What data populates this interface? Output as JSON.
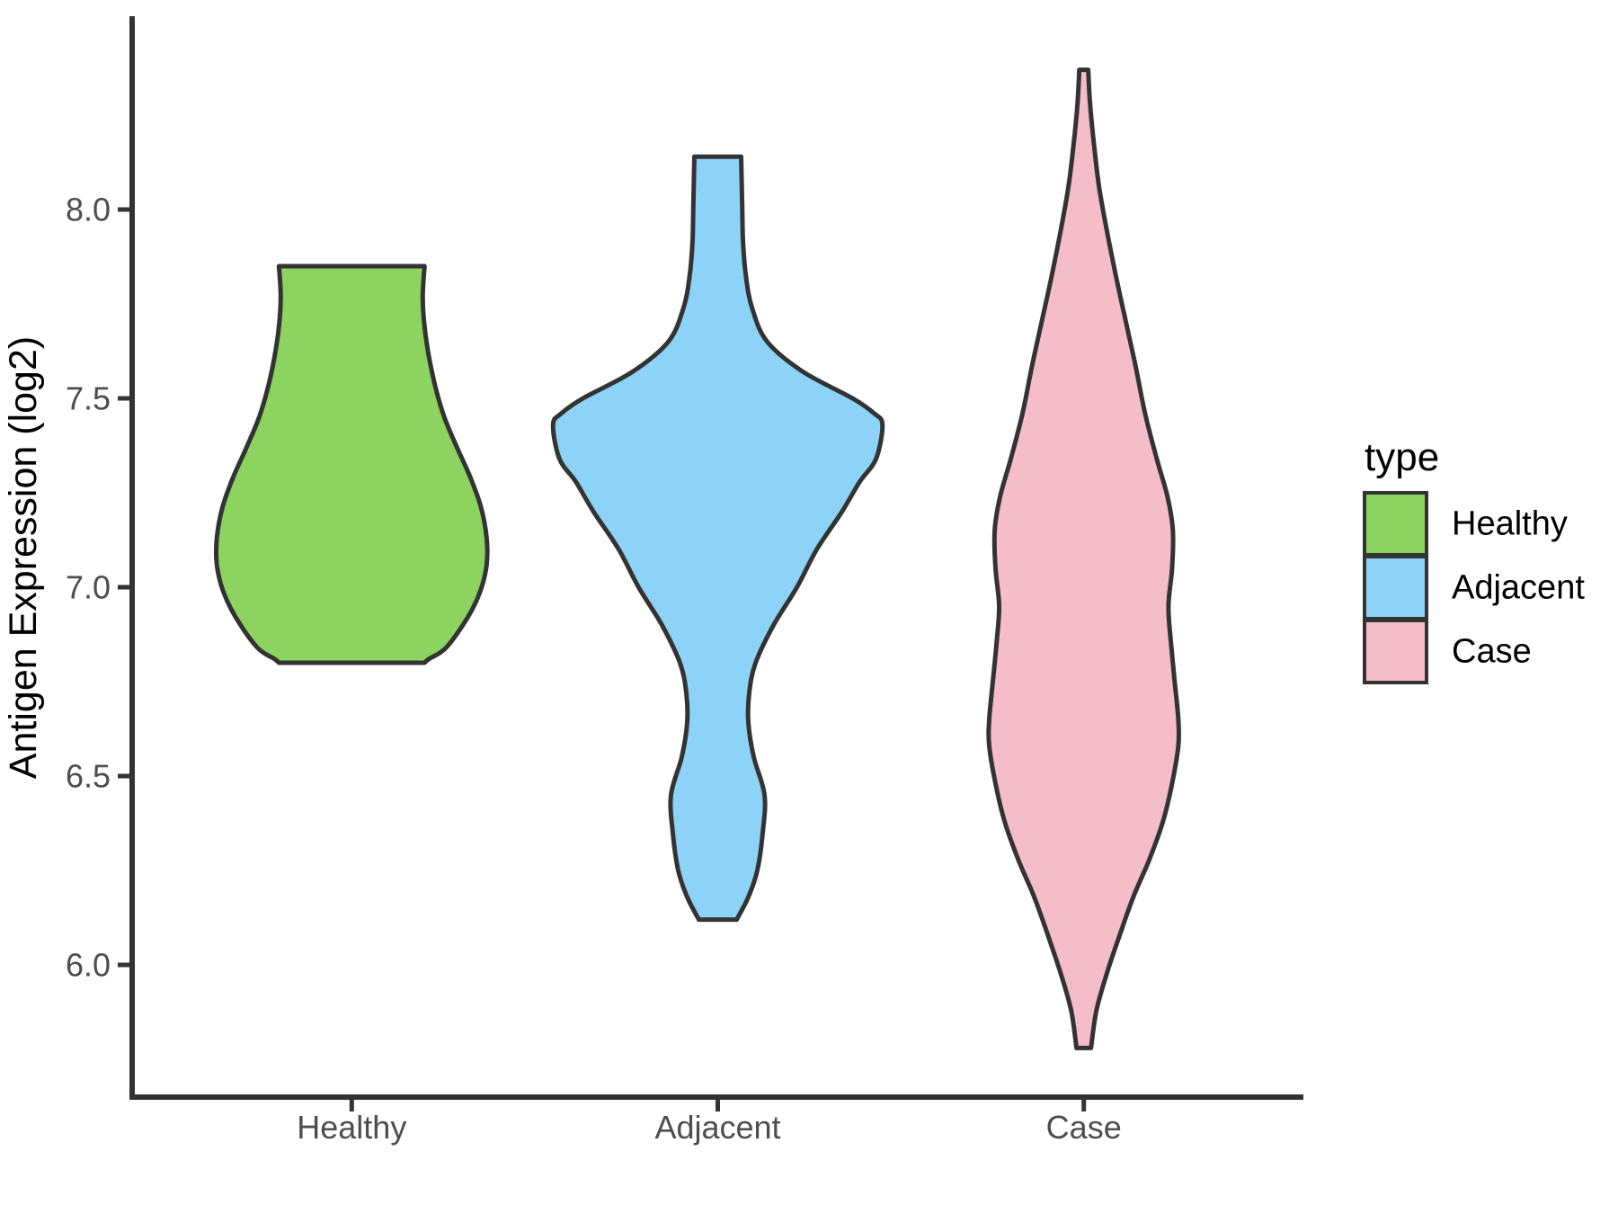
{
  "chart_data": {
    "type": "violin",
    "ylabel": "Antigen Expression (log2)",
    "categories": [
      "Healthy",
      "Adjacent",
      "Case"
    ],
    "y_ticks": [
      8.0,
      7.5,
      7.0,
      6.5,
      6.0
    ],
    "y_tick_labels": [
      "8.0",
      "7.5",
      "7.0",
      "6.5",
      "6.0"
    ],
    "ylim": [
      5.65,
      8.5
    ],
    "grid": false,
    "legend": {
      "title": "type",
      "position": "right"
    },
    "style": {
      "outline_color": "#333333",
      "axis_color": "#333333",
      "tick_label_color": "#4d4d4d",
      "background": "#ffffff"
    },
    "series": [
      {
        "name": "Healthy",
        "color": "#8dd35f",
        "y_min": 6.8,
        "y_max": 7.85,
        "profile": [
          [
            7.85,
            0.442
          ],
          [
            7.77,
            0.431
          ],
          [
            7.69,
            0.442
          ],
          [
            7.61,
            0.469
          ],
          [
            7.53,
            0.508
          ],
          [
            7.45,
            0.562
          ],
          [
            7.37,
            0.639
          ],
          [
            7.29,
            0.721
          ],
          [
            7.21,
            0.786
          ],
          [
            7.13,
            0.819
          ],
          [
            7.06,
            0.819
          ],
          [
            6.99,
            0.781
          ],
          [
            6.92,
            0.704
          ],
          [
            6.84,
            0.573
          ],
          [
            6.81,
            0.469
          ],
          [
            6.8,
            0.442
          ]
        ]
      },
      {
        "name": "Adjacent",
        "color": "#8dd3f8",
        "y_min": 6.12,
        "y_max": 8.14,
        "profile": [
          [
            8.14,
            0.142
          ],
          [
            8.02,
            0.148
          ],
          [
            7.92,
            0.153
          ],
          [
            7.83,
            0.169
          ],
          [
            7.74,
            0.208
          ],
          [
            7.65,
            0.3
          ],
          [
            7.57,
            0.519
          ],
          [
            7.5,
            0.819
          ],
          [
            7.46,
            0.95
          ],
          [
            7.43,
            1.0
          ],
          [
            7.34,
            0.961
          ],
          [
            7.28,
            0.863
          ],
          [
            7.2,
            0.754
          ],
          [
            7.1,
            0.601
          ],
          [
            7.0,
            0.481
          ],
          [
            6.9,
            0.339
          ],
          [
            6.8,
            0.23
          ],
          [
            6.72,
            0.191
          ],
          [
            6.64,
            0.186
          ],
          [
            6.55,
            0.219
          ],
          [
            6.45,
            0.284
          ],
          [
            6.35,
            0.273
          ],
          [
            6.25,
            0.24
          ],
          [
            6.18,
            0.186
          ],
          [
            6.12,
            0.115
          ]
        ]
      },
      {
        "name": "Case",
        "color": "#f5bcc9",
        "y_min": 5.78,
        "y_max": 8.37,
        "profile": [
          [
            8.37,
            0.027
          ],
          [
            8.28,
            0.038
          ],
          [
            8.18,
            0.06
          ],
          [
            8.06,
            0.093
          ],
          [
            7.94,
            0.142
          ],
          [
            7.82,
            0.197
          ],
          [
            7.7,
            0.257
          ],
          [
            7.58,
            0.317
          ],
          [
            7.46,
            0.372
          ],
          [
            7.34,
            0.443
          ],
          [
            7.24,
            0.508
          ],
          [
            7.15,
            0.541
          ],
          [
            7.05,
            0.536
          ],
          [
            6.95,
            0.514
          ],
          [
            6.85,
            0.53
          ],
          [
            6.75,
            0.552
          ],
          [
            6.65,
            0.574
          ],
          [
            6.58,
            0.574
          ],
          [
            6.48,
            0.536
          ],
          [
            6.38,
            0.481
          ],
          [
            6.28,
            0.399
          ],
          [
            6.18,
            0.301
          ],
          [
            6.08,
            0.219
          ],
          [
            5.98,
            0.142
          ],
          [
            5.88,
            0.077
          ],
          [
            5.78,
            0.044
          ]
        ]
      }
    ]
  }
}
